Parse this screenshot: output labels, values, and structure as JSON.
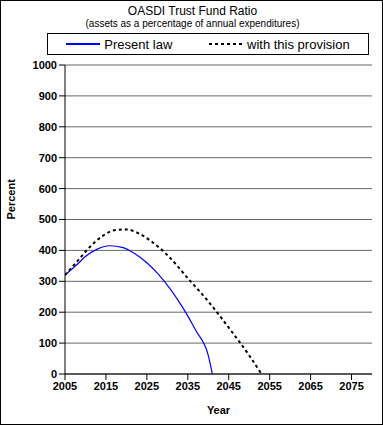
{
  "chart_data": {
    "type": "line",
    "title": "OASDI Trust Fund Ratio",
    "subtitle": "(assets as a percentage of annual expenditures)",
    "x_label": "Year",
    "y_label": "Percent",
    "xlim": [
      2005,
      2080
    ],
    "xticks": [
      2005,
      2015,
      2025,
      2035,
      2045,
      2055,
      2065,
      2075
    ],
    "ylim": [
      0,
      1000
    ],
    "yticks": [
      0,
      100,
      200,
      300,
      400,
      500,
      600,
      700,
      800,
      900,
      1000
    ],
    "grid": true,
    "legend": "top",
    "series": [
      {
        "name": "Present law",
        "color": "#0000ff",
        "line_style": "solid",
        "x": [
          2005,
          2008,
          2010,
          2013,
          2016,
          2019,
          2022,
          2025,
          2028,
          2031,
          2034,
          2037,
          2040,
          2041
        ],
        "values": [
          320,
          355,
          380,
          405,
          415,
          410,
          390,
          360,
          320,
          270,
          210,
          140,
          60,
          0
        ]
      },
      {
        "name": "with this provision",
        "color": "#000000",
        "line_style": "dotted",
        "x": [
          2005,
          2008,
          2011,
          2014,
          2017,
          2020,
          2023,
          2026,
          2030,
          2035,
          2040,
          2045,
          2050,
          2053
        ],
        "values": [
          320,
          365,
          410,
          445,
          465,
          468,
          455,
          430,
          385,
          310,
          235,
          150,
          60,
          0
        ]
      }
    ]
  }
}
